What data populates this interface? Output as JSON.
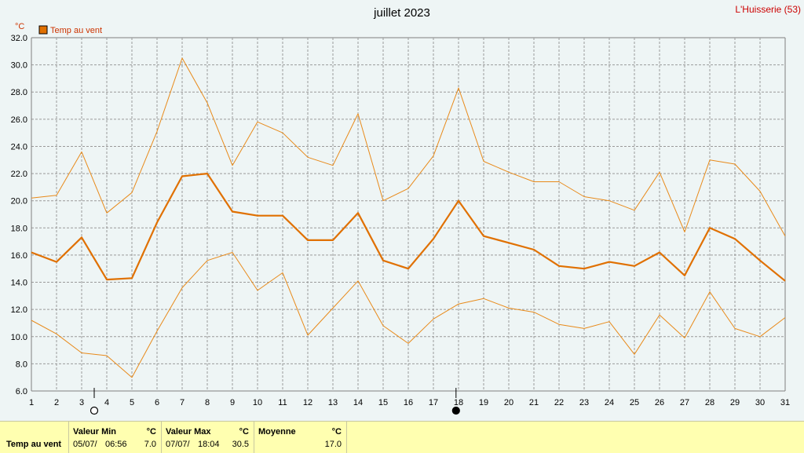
{
  "header": {
    "title": "juillet 2023",
    "station": "L'Huisserie (53)",
    "unit": "°C",
    "legend_label": "Temp au vent"
  },
  "colors": {
    "series": "#e88a1a",
    "legend_box": "#e07000",
    "station": "#cc0000",
    "footer_bg": "#ffffb0"
  },
  "chart_data": {
    "type": "line",
    "title": "juillet 2023",
    "ylabel": "°C",
    "ylim": [
      6,
      32
    ],
    "yticks": [
      "6.0",
      "8.0",
      "10.0",
      "12.0",
      "14.0",
      "16.0",
      "18.0",
      "20.0",
      "22.0",
      "24.0",
      "26.0",
      "28.0",
      "30.0",
      "32.0"
    ],
    "x": [
      1,
      2,
      3,
      4,
      5,
      6,
      7,
      8,
      9,
      10,
      11,
      12,
      13,
      14,
      15,
      16,
      17,
      18,
      19,
      20,
      21,
      22,
      23,
      24,
      25,
      26,
      27,
      28,
      29,
      30,
      31
    ],
    "grid": true,
    "legend": "top-left",
    "moon_markers": [
      {
        "day": 3.5,
        "phase": "full"
      },
      {
        "day": 17.9,
        "phase": "new"
      }
    ],
    "series": [
      {
        "name": "Temp au vent",
        "role": "max",
        "values": [
          20.2,
          20.4,
          23.6,
          19.1,
          20.6,
          25.1,
          30.5,
          27.2,
          22.6,
          25.8,
          25.0,
          23.2,
          22.6,
          26.4,
          20.0,
          20.9,
          23.3,
          28.3,
          22.9,
          22.1,
          21.4,
          21.4,
          20.3,
          20.0,
          19.3,
          22.1,
          17.7,
          23.0,
          22.7,
          20.7,
          17.4
        ]
      },
      {
        "name": "Temp au vent",
        "role": "mean",
        "values": [
          16.2,
          15.5,
          17.3,
          14.2,
          14.3,
          18.4,
          21.8,
          22.0,
          19.2,
          18.9,
          18.9,
          17.1,
          17.1,
          19.1,
          15.6,
          15.0,
          17.2,
          20.0,
          17.4,
          16.9,
          16.4,
          15.2,
          15.0,
          15.5,
          15.2,
          16.2,
          14.5,
          18.0,
          17.2,
          15.6,
          14.1
        ]
      },
      {
        "name": "Temp au vent",
        "role": "min",
        "values": [
          11.2,
          10.2,
          8.8,
          8.6,
          7.0,
          10.4,
          13.6,
          15.6,
          16.2,
          13.4,
          14.7,
          10.1,
          12.1,
          14.1,
          10.8,
          9.5,
          11.3,
          12.4,
          12.8,
          12.1,
          11.8,
          10.9,
          10.6,
          11.1,
          8.7,
          11.6,
          9.9,
          13.3,
          10.6,
          10.0,
          11.4
        ]
      }
    ]
  },
  "footer": {
    "row_label": "Temp au vent",
    "min": {
      "header": "Valeur Min",
      "unit": "°C",
      "date": "05/07/",
      "time": "06:56",
      "value": "7.0"
    },
    "max": {
      "header": "Valeur Max",
      "unit": "°C",
      "date": "07/07/",
      "time": "18:04",
      "value": "30.5"
    },
    "avg": {
      "header": "Moyenne",
      "unit": "°C",
      "value": "17.0"
    }
  }
}
